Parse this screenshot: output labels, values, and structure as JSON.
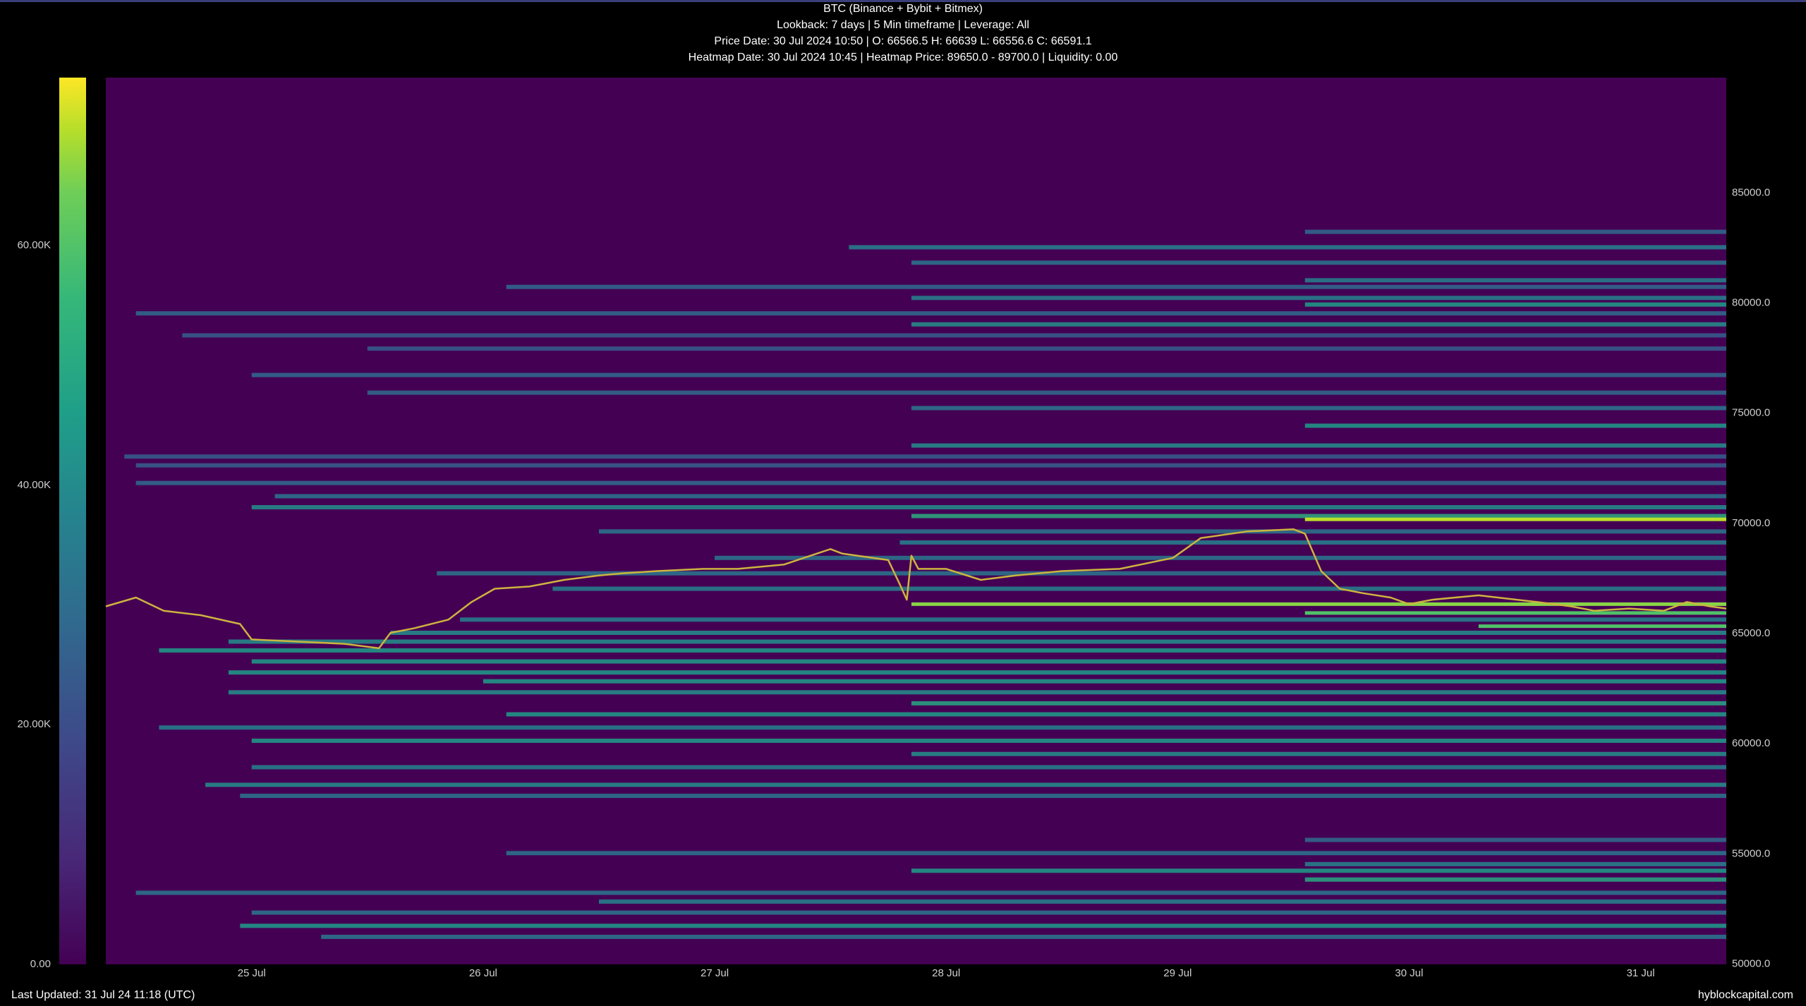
{
  "header": {
    "line1": "BTC (Binance + Bybit + Bitmex)",
    "line2": "Lookback: 7 days | 5 Min timeframe | Leverage: All",
    "line3": "Price Date: 30 Jul 2024 10:50 | O: 66566.5 H: 66639 L: 66556.6 C: 66591.1",
    "line4": "Heatmap Date: 30 Jul 2024 10:45 | Heatmap Price: 89650.0 - 89700.0 | Liquidity: 0.00"
  },
  "footer": {
    "last_updated": "Last Updated: 31 Jul 24 11:18 (UTC)",
    "brand": "hyblockcapital.com"
  },
  "colorbar": {
    "ticks": [
      {
        "label": "0.00",
        "value": 0
      },
      {
        "label": "20.00K",
        "value": 20000
      },
      {
        "label": "40.00K",
        "value": 40000
      },
      {
        "label": "60.00K",
        "value": 60000
      }
    ],
    "max": 74000,
    "colors": [
      "#440154",
      "#482878",
      "#3e4989",
      "#31688e",
      "#26828e",
      "#1f9e89",
      "#35b779",
      "#6ece58",
      "#b5de2b",
      "#fde725"
    ]
  },
  "chart_data": {
    "type": "heatmap",
    "title": "BTC (Binance + Bybit + Bitmex)",
    "x_unit": "days since 24 Jul 2024 00:00 UTC",
    "x_range": [
      0.37,
      7.37
    ],
    "x_ticks": [
      {
        "label": "25 Jul",
        "value": 1
      },
      {
        "label": "26 Jul",
        "value": 2
      },
      {
        "label": "27 Jul",
        "value": 3
      },
      {
        "label": "28 Jul",
        "value": 4
      },
      {
        "label": "29 Jul",
        "value": 5
      },
      {
        "label": "30 Jul",
        "value": 6
      },
      {
        "label": "31 Jul",
        "value": 7
      }
    ],
    "y_range": [
      49950,
      90200
    ],
    "y_ticks": [
      {
        "label": "50000.0",
        "value": 50000
      },
      {
        "label": "55000.0",
        "value": 55000
      },
      {
        "label": "60000.0",
        "value": 60000
      },
      {
        "label": "65000.0",
        "value": 65000
      },
      {
        "label": "70000.0",
        "value": 70000
      },
      {
        "label": "75000.0",
        "value": 75000
      },
      {
        "label": "80000.0",
        "value": 80000
      },
      {
        "label": "85000.0",
        "value": 85000
      }
    ],
    "background_color": "#440154",
    "liquidity_bands": [
      {
        "price": 83200,
        "start": 5.55,
        "level": 0.35
      },
      {
        "price": 82500,
        "start": 3.58,
        "level": 0.45
      },
      {
        "price": 81800,
        "start": 3.85,
        "level": 0.4
      },
      {
        "price": 81000,
        "start": 5.55,
        "level": 0.45
      },
      {
        "price": 80700,
        "start": 2.1,
        "level": 0.35
      },
      {
        "price": 80200,
        "start": 3.85,
        "level": 0.45
      },
      {
        "price": 79900,
        "start": 5.55,
        "level": 0.55
      },
      {
        "price": 79500,
        "start": 0.5,
        "level": 0.35
      },
      {
        "price": 79000,
        "start": 3.85,
        "level": 0.5
      },
      {
        "price": 78500,
        "start": 0.7,
        "level": 0.3
      },
      {
        "price": 77900,
        "start": 1.5,
        "level": 0.3
      },
      {
        "price": 76700,
        "start": 1.0,
        "level": 0.35
      },
      {
        "price": 75900,
        "start": 1.5,
        "level": 0.35
      },
      {
        "price": 75200,
        "start": 3.85,
        "level": 0.4
      },
      {
        "price": 74400,
        "start": 5.55,
        "level": 0.55
      },
      {
        "price": 73500,
        "start": 3.85,
        "level": 0.5
      },
      {
        "price": 73000,
        "start": 0.45,
        "level": 0.3
      },
      {
        "price": 72600,
        "start": 0.5,
        "level": 0.3
      },
      {
        "price": 71800,
        "start": 0.5,
        "level": 0.35
      },
      {
        "price": 71200,
        "start": 1.1,
        "level": 0.4
      },
      {
        "price": 70700,
        "start": 1.0,
        "level": 0.5
      },
      {
        "price": 70300,
        "start": 3.85,
        "level": 0.62
      },
      {
        "price": 70150,
        "start": 5.55,
        "level": 0.9
      },
      {
        "price": 69600,
        "start": 2.5,
        "level": 0.4
      },
      {
        "price": 69100,
        "start": 3.8,
        "level": 0.45
      },
      {
        "price": 68400,
        "start": 3.0,
        "level": 0.4
      },
      {
        "price": 67700,
        "start": 1.8,
        "level": 0.4
      },
      {
        "price": 67000,
        "start": 2.3,
        "level": 0.45
      },
      {
        "price": 66300,
        "start": 3.85,
        "level": 0.82
      },
      {
        "price": 65900,
        "start": 5.55,
        "level": 0.72
      },
      {
        "price": 65600,
        "start": 1.9,
        "level": 0.45
      },
      {
        "price": 65300,
        "start": 6.3,
        "level": 0.72
      },
      {
        "price": 65000,
        "start": 1.6,
        "level": 0.5
      },
      {
        "price": 64600,
        "start": 0.9,
        "level": 0.5
      },
      {
        "price": 64200,
        "start": 0.6,
        "level": 0.55
      },
      {
        "price": 63700,
        "start": 1.0,
        "level": 0.55
      },
      {
        "price": 63200,
        "start": 0.9,
        "level": 0.55
      },
      {
        "price": 62800,
        "start": 2.0,
        "level": 0.55
      },
      {
        "price": 62300,
        "start": 0.9,
        "level": 0.5
      },
      {
        "price": 61800,
        "start": 3.85,
        "level": 0.6
      },
      {
        "price": 61300,
        "start": 2.1,
        "level": 0.55
      },
      {
        "price": 60700,
        "start": 0.6,
        "level": 0.45
      },
      {
        "price": 60100,
        "start": 1.0,
        "level": 0.55
      },
      {
        "price": 59500,
        "start": 3.85,
        "level": 0.5
      },
      {
        "price": 58900,
        "start": 1.0,
        "level": 0.45
      },
      {
        "price": 58100,
        "start": 0.8,
        "level": 0.5
      },
      {
        "price": 57600,
        "start": 0.95,
        "level": 0.4
      },
      {
        "price": 55600,
        "start": 5.55,
        "level": 0.35
      },
      {
        "price": 55000,
        "start": 2.1,
        "level": 0.4
      },
      {
        "price": 54500,
        "start": 5.55,
        "level": 0.45
      },
      {
        "price": 54200,
        "start": 3.85,
        "level": 0.55
      },
      {
        "price": 53800,
        "start": 5.55,
        "level": 0.6
      },
      {
        "price": 53200,
        "start": 0.5,
        "level": 0.4
      },
      {
        "price": 52800,
        "start": 2.5,
        "level": 0.45
      },
      {
        "price": 52300,
        "start": 1.0,
        "level": 0.4
      },
      {
        "price": 51700,
        "start": 0.95,
        "level": 0.55
      },
      {
        "price": 51200,
        "start": 1.3,
        "level": 0.4
      }
    ],
    "price_series": {
      "name": "BTC",
      "x": [
        0.37,
        0.5,
        0.62,
        0.78,
        0.95,
        1.0,
        1.2,
        1.4,
        1.55,
        1.6,
        1.7,
        1.85,
        1.95,
        2.05,
        2.2,
        2.35,
        2.5,
        2.6,
        2.75,
        2.95,
        3.1,
        3.3,
        3.5,
        3.55,
        3.75,
        3.8,
        3.83,
        3.85,
        3.88,
        4.0,
        4.15,
        4.3,
        4.5,
        4.75,
        4.98,
        5.1,
        5.3,
        5.5,
        5.55,
        5.62,
        5.7,
        5.8,
        5.92,
        6.0,
        6.1,
        6.3,
        6.55,
        6.7,
        6.8,
        6.95,
        7.1,
        7.2,
        7.3,
        7.37
      ],
      "y": [
        66200,
        66600,
        66000,
        65800,
        65400,
        64700,
        64600,
        64500,
        64300,
        65000,
        65200,
        65600,
        66400,
        67000,
        67100,
        67400,
        67600,
        67700,
        67800,
        67900,
        67900,
        68100,
        68800,
        68600,
        68300,
        67200,
        66500,
        68500,
        67900,
        67900,
        67400,
        67600,
        67800,
        67900,
        68400,
        69300,
        69600,
        69700,
        69500,
        67800,
        67000,
        66800,
        66600,
        66300,
        66500,
        66700,
        66400,
        66200,
        66000,
        66100,
        66000,
        66400,
        66200,
        66100
      ]
    }
  }
}
